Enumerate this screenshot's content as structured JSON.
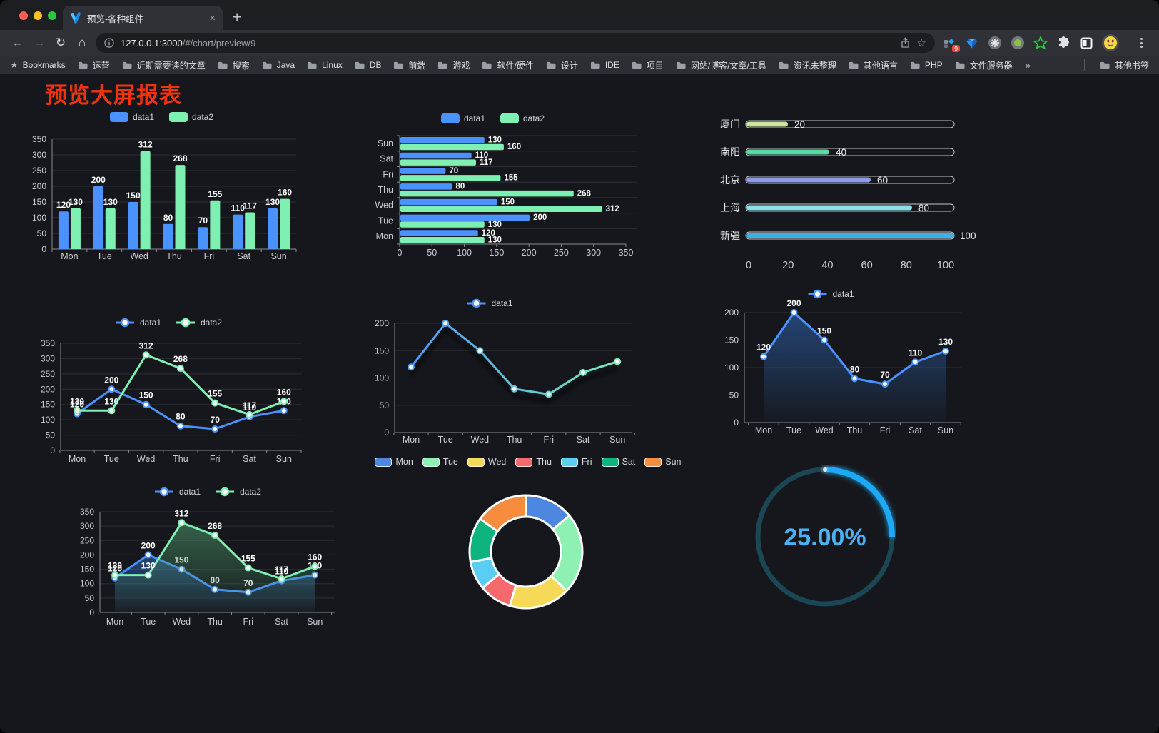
{
  "browser": {
    "traffic_lights": [
      "#ff5f57",
      "#febc2e",
      "#28c840"
    ],
    "tab": {
      "title": "预览-各种组件",
      "close_icon": "×",
      "new_tab_icon": "+"
    },
    "toolbar": {
      "back_icon": "←",
      "forward_icon": "→",
      "reload_icon": "↻",
      "home_icon": "⌂",
      "url_host": "127.0.0.1:3000",
      "url_path": "/#/chart/preview/9",
      "star_icon": "☆",
      "extension_badge": "9"
    },
    "bookmarks_bar": {
      "bookmarks_label": "Bookmarks",
      "folders": [
        "运营",
        "近期需要读的文章",
        "搜索",
        "Java",
        "Linux",
        "DB",
        "前端",
        "游戏",
        "软件/硬件",
        "设计",
        "IDE",
        "项目",
        "网站/博客/文章/工具",
        "资讯未整理",
        "其他语言",
        "PHP",
        "文件服务器"
      ],
      "overflow": "»",
      "other_bookmarks": "其他书签"
    }
  },
  "page": {
    "title": "预览大屏报表",
    "title_color": "#f5330b"
  },
  "chart_data": [
    {
      "id": "bar-vertical",
      "type": "bar",
      "categories": [
        "Mon",
        "Tue",
        "Wed",
        "Thu",
        "Fri",
        "Sat",
        "Sun"
      ],
      "series": [
        {
          "name": "data1",
          "color": "#4992ff",
          "values": [
            120,
            200,
            150,
            80,
            70,
            110,
            130
          ]
        },
        {
          "name": "data2",
          "color": "#7df0b2",
          "values": [
            130,
            130,
            312,
            268,
            155,
            117,
            160
          ]
        }
      ],
      "ylim": [
        0,
        350
      ],
      "ytick_step": 50,
      "grid": true,
      "legend_position": "top"
    },
    {
      "id": "bar-horizontal",
      "type": "bar-horizontal",
      "categories": [
        "Mon",
        "Tue",
        "Wed",
        "Thu",
        "Fri",
        "Sat",
        "Sun"
      ],
      "series": [
        {
          "name": "data1",
          "color": "#4992ff",
          "values": [
            120,
            200,
            150,
            80,
            70,
            110,
            130
          ]
        },
        {
          "name": "data2",
          "color": "#7df0b2",
          "values": [
            130,
            130,
            312,
            268,
            155,
            117,
            160
          ]
        }
      ],
      "xlim": [
        0,
        350
      ],
      "xtick_step": 50,
      "legend_position": "top"
    },
    {
      "id": "city-progress",
      "type": "progress",
      "items": [
        {
          "label": "厦门",
          "value": 20,
          "color": "#cbe59b"
        },
        {
          "label": "南阳",
          "value": 40,
          "color": "#5bd9a5"
        },
        {
          "label": "北京",
          "value": 60,
          "color": "#8d9ce8"
        },
        {
          "label": "上海",
          "value": 80,
          "color": "#8ce0e8"
        },
        {
          "label": "新疆",
          "value": 100,
          "color": "#3ab2e8"
        }
      ],
      "xlim": [
        0,
        100
      ],
      "xticks": [
        0,
        20,
        40,
        60,
        80,
        100
      ]
    },
    {
      "id": "line-two",
      "type": "line",
      "categories": [
        "Mon",
        "Tue",
        "Wed",
        "Thu",
        "Fri",
        "Sat",
        "Sun"
      ],
      "series": [
        {
          "name": "data1",
          "color": "#4992ff",
          "values": [
            120,
            200,
            150,
            80,
            70,
            110,
            130
          ]
        },
        {
          "name": "data2",
          "color": "#7df0b2",
          "values": [
            130,
            130,
            312,
            268,
            155,
            117,
            160
          ]
        }
      ],
      "ylim": [
        0,
        350
      ],
      "ytick_step": 50,
      "show_labels": true,
      "legend_position": "top"
    },
    {
      "id": "line-gradient",
      "type": "line",
      "categories": [
        "Mon",
        "Tue",
        "Wed",
        "Thu",
        "Fri",
        "Sat",
        "Sun"
      ],
      "series": [
        {
          "name": "data1",
          "color_gradient": [
            "#4992ff",
            "#7df0b2"
          ],
          "values": [
            120,
            200,
            150,
            80,
            70,
            110,
            130
          ]
        }
      ],
      "ylim": [
        0,
        200
      ],
      "ytick_step": 50,
      "show_labels": false,
      "shadow": true,
      "legend_position": "top"
    },
    {
      "id": "area-single",
      "type": "area",
      "categories": [
        "Mon",
        "Tue",
        "Wed",
        "Thu",
        "Fri",
        "Sat",
        "Sun"
      ],
      "series": [
        {
          "name": "data1",
          "color": "#4992ff",
          "area_color": "#2f6bbf",
          "values": [
            120,
            200,
            150,
            80,
            70,
            110,
            130
          ]
        }
      ],
      "ylim": [
        0,
        200
      ],
      "ytick_step": 50,
      "show_labels": true,
      "legend_position": "top"
    },
    {
      "id": "area-two",
      "type": "area",
      "categories": [
        "Mon",
        "Tue",
        "Wed",
        "Thu",
        "Fri",
        "Sat",
        "Sun"
      ],
      "series": [
        {
          "name": "data1",
          "color": "#4992ff",
          "area_color": "#2f6bbf",
          "values": [
            120,
            200,
            150,
            80,
            70,
            110,
            130
          ]
        },
        {
          "name": "data2",
          "color": "#7df0b2",
          "area_color": "#4f9e6e",
          "values": [
            130,
            130,
            312,
            268,
            155,
            117,
            160
          ]
        }
      ],
      "ylim": [
        0,
        350
      ],
      "ytick_step": 50,
      "show_labels": true,
      "legend_position": "top"
    },
    {
      "id": "donut",
      "type": "pie",
      "legend_position": "top",
      "items": [
        {
          "name": "Mon",
          "value": 120,
          "color": "#4e87e0"
        },
        {
          "name": "Tue",
          "value": 200,
          "color": "#8ff0b4"
        },
        {
          "name": "Wed",
          "value": 150,
          "color": "#f7d958"
        },
        {
          "name": "Thu",
          "value": 80,
          "color": "#f8696e"
        },
        {
          "name": "Fri",
          "value": 70,
          "color": "#5acdf2"
        },
        {
          "name": "Sat",
          "value": 110,
          "color": "#0db47e"
        },
        {
          "name": "Sun",
          "value": 130,
          "color": "#f78c3e"
        }
      ]
    },
    {
      "id": "gauge",
      "type": "gauge",
      "value": 25,
      "display": "25.00%",
      "color": "#1aa9f5",
      "track_color": "#1b4754",
      "text_color": "#4bb1f3"
    }
  ]
}
